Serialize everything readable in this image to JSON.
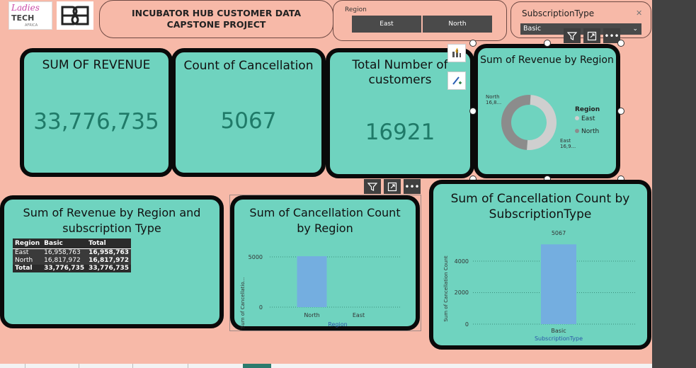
{
  "header": {
    "logo": {
      "line1": "Ladies",
      "line2": "TECH",
      "small": "AFRICA"
    },
    "title": "INCUBATOR HUB CUSTOMER DATA CAPSTONE PROJECT"
  },
  "region_slicer": {
    "label": "Region",
    "options": [
      "East",
      "North"
    ]
  },
  "subscription_slicer": {
    "label": "SubscriptionType",
    "selected": "Basic"
  },
  "kpis": {
    "revenue": {
      "title": "SUM OF REVENUE",
      "value": "33,776,735"
    },
    "cancellations": {
      "title": "Count of Cancellation",
      "value": "5067"
    },
    "customers": {
      "title": "Total Number of customers",
      "value": "16921"
    }
  },
  "donut": {
    "title": "Sum of Revenue by Region",
    "legend_title": "Region",
    "legend_items": [
      "East",
      "North"
    ],
    "label_north": [
      "North",
      "16,8..."
    ],
    "label_east": [
      "East",
      "16,9..."
    ]
  },
  "matrix": {
    "title": "Sum of Revenue by Region and subscription Type",
    "headers": [
      "Region",
      "Basic",
      "Total"
    ],
    "rows": [
      [
        "East",
        "16,958,763",
        "16,958,763"
      ],
      [
        "North",
        "16,817,972",
        "16,817,972"
      ]
    ],
    "total": [
      "Total",
      "33,776,735",
      "33,776,735"
    ]
  },
  "bar_region": {
    "title": "Sum of Cancellation Count by Region",
    "ylabel": "Sum of Cancellatio...",
    "xlabel": "Region",
    "yticks": [
      "5000",
      "0"
    ]
  },
  "bar_sub": {
    "title": "Sum of Cancellation Count by SubscriptionType",
    "ylabel": "Sum of Cancellation Count",
    "xlabel": "SubscriptionType",
    "yticks": [
      "4000",
      "2000",
      "0"
    ],
    "data_label": "5067"
  },
  "chart_data": [
    {
      "type": "pie",
      "title": "Sum of Revenue by Region",
      "categories": [
        "East",
        "North"
      ],
      "values": [
        16958763,
        16817972
      ],
      "legend": "right",
      "colors": [
        "#cfcfcf",
        "#8c8c8c"
      ]
    },
    {
      "type": "bar",
      "title": "Sum of Cancellation Count by Region",
      "categories": [
        "North",
        "East"
      ],
      "values": [
        5067,
        0
      ],
      "xlabel": "Region",
      "ylabel": "Sum of Cancellatio...",
      "ylim": [
        0,
        5400
      ],
      "grid": true,
      "colors": [
        "#74aee0"
      ]
    },
    {
      "type": "bar",
      "title": "Sum of Cancellation Count by SubscriptionType",
      "categories": [
        "Basic"
      ],
      "values": [
        5067
      ],
      "xlabel": "SubscriptionType",
      "ylabel": "Sum of Cancellation Count",
      "ylim": [
        0,
        5100
      ],
      "grid": true,
      "colors": [
        "#74aee0"
      ]
    }
  ],
  "colors": {
    "canvas": "#f7b9a8",
    "card": "#6fd3bf",
    "value": "#1f7a68",
    "bar": "#74aee0"
  },
  "icons": [
    "filter-icon",
    "focus-mode-icon",
    "more-options-icon",
    "chart-visual-icon",
    "format-paint-icon"
  ]
}
